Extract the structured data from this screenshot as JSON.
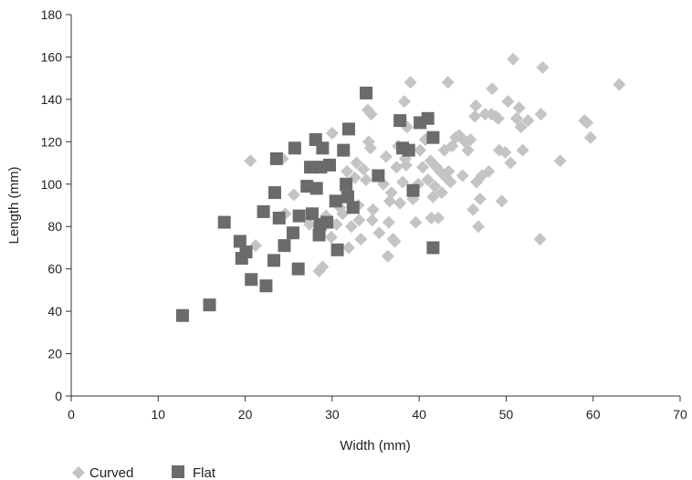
{
  "chart_data": {
    "type": "scatter",
    "title": "",
    "xlabel": "Width (mm)",
    "ylabel": "Length (mm)",
    "xlim": [
      0,
      70
    ],
    "ylim": [
      0,
      180
    ],
    "xticks": [
      0,
      10,
      20,
      30,
      40,
      50,
      60,
      70
    ],
    "yticks": [
      0,
      20,
      40,
      60,
      80,
      100,
      120,
      140,
      160,
      180
    ],
    "grid": false,
    "legend_position": "bottom-left",
    "series": [
      {
        "name": "Curved",
        "marker": "diamond",
        "color": "#c4c4c4",
        "points": [
          [
            20.6,
            111
          ],
          [
            21.2,
            71
          ],
          [
            24.3,
            112
          ],
          [
            24.6,
            86
          ],
          [
            25.6,
            95
          ],
          [
            27.4,
            81
          ],
          [
            28.5,
            59
          ],
          [
            28.9,
            61
          ],
          [
            29.3,
            85
          ],
          [
            29.5,
            83
          ],
          [
            29.9,
            75
          ],
          [
            30.0,
            124
          ],
          [
            30.5,
            81
          ],
          [
            30.9,
            89
          ],
          [
            31.2,
            86
          ],
          [
            31.5,
            97
          ],
          [
            31.7,
            106
          ],
          [
            31.9,
            70
          ],
          [
            32.2,
            80
          ],
          [
            32.6,
            103
          ],
          [
            32.8,
            110
          ],
          [
            33.0,
            90
          ],
          [
            33.1,
            83
          ],
          [
            33.3,
            74
          ],
          [
            33.6,
            107
          ],
          [
            33.9,
            102
          ],
          [
            34.1,
            135
          ],
          [
            34.2,
            120
          ],
          [
            34.4,
            117
          ],
          [
            34.5,
            133
          ],
          [
            34.6,
            83
          ],
          [
            34.7,
            88
          ],
          [
            35.4,
            77
          ],
          [
            35.9,
            100
          ],
          [
            36.2,
            113
          ],
          [
            36.4,
            66
          ],
          [
            36.5,
            82
          ],
          [
            36.6,
            92
          ],
          [
            36.8,
            96
          ],
          [
            37.0,
            74
          ],
          [
            37.2,
            73
          ],
          [
            37.4,
            108
          ],
          [
            37.6,
            118
          ],
          [
            37.8,
            91
          ],
          [
            38.1,
            101
          ],
          [
            38.3,
            139
          ],
          [
            38.4,
            112
          ],
          [
            38.5,
            109
          ],
          [
            38.6,
            127
          ],
          [
            39.0,
            148
          ],
          [
            39.3,
            93
          ],
          [
            39.6,
            82
          ],
          [
            39.9,
            100
          ],
          [
            40.1,
            116
          ],
          [
            40.4,
            108
          ],
          [
            40.7,
            121
          ],
          [
            41.0,
            102
          ],
          [
            41.3,
            111
          ],
          [
            41.4,
            84
          ],
          [
            41.6,
            94
          ],
          [
            41.8,
            99
          ],
          [
            42.0,
            108
          ],
          [
            42.2,
            84
          ],
          [
            42.4,
            106
          ],
          [
            42.6,
            96
          ],
          [
            42.9,
            116
          ],
          [
            43.1,
            103
          ],
          [
            43.3,
            148
          ],
          [
            43.4,
            106
          ],
          [
            43.6,
            101
          ],
          [
            43.8,
            118
          ],
          [
            44.2,
            122
          ],
          [
            44.6,
            123
          ],
          [
            45.0,
            104
          ],
          [
            45.3,
            120
          ],
          [
            45.6,
            116
          ],
          [
            45.9,
            121
          ],
          [
            46.2,
            88
          ],
          [
            46.4,
            132
          ],
          [
            46.5,
            137
          ],
          [
            46.6,
            101
          ],
          [
            46.8,
            80
          ],
          [
            47.0,
            93
          ],
          [
            47.2,
            104
          ],
          [
            47.6,
            133
          ],
          [
            48.0,
            106
          ],
          [
            48.3,
            133
          ],
          [
            48.4,
            145
          ],
          [
            48.8,
            132
          ],
          [
            49.1,
            131
          ],
          [
            49.2,
            116
          ],
          [
            49.5,
            92
          ],
          [
            49.9,
            115
          ],
          [
            50.2,
            139
          ],
          [
            50.5,
            110
          ],
          [
            50.8,
            159
          ],
          [
            51.2,
            131
          ],
          [
            51.5,
            136
          ],
          [
            51.7,
            127
          ],
          [
            51.9,
            116
          ],
          [
            52.5,
            130
          ],
          [
            53.9,
            74
          ],
          [
            54.0,
            133
          ],
          [
            54.2,
            155
          ],
          [
            56.2,
            111
          ],
          [
            59.0,
            130
          ],
          [
            59.3,
            129
          ],
          [
            59.7,
            122
          ],
          [
            63.0,
            147
          ]
        ]
      },
      {
        "name": "Flat",
        "marker": "square",
        "color": "#6b6b6b",
        "points": [
          [
            12.8,
            38
          ],
          [
            15.9,
            43
          ],
          [
            17.6,
            82
          ],
          [
            19.4,
            73
          ],
          [
            19.6,
            65
          ],
          [
            20.1,
            68
          ],
          [
            20.7,
            55
          ],
          [
            22.1,
            87
          ],
          [
            22.4,
            52
          ],
          [
            23.3,
            64
          ],
          [
            23.4,
            96
          ],
          [
            23.6,
            112
          ],
          [
            23.9,
            84
          ],
          [
            24.5,
            71
          ],
          [
            25.5,
            77
          ],
          [
            25.7,
            117
          ],
          [
            26.2,
            85
          ],
          [
            26.1,
            60
          ],
          [
            27.1,
            99
          ],
          [
            27.5,
            108
          ],
          [
            27.7,
            86
          ],
          [
            28.1,
            121
          ],
          [
            28.2,
            98
          ],
          [
            28.5,
            76
          ],
          [
            28.6,
            81
          ],
          [
            28.9,
            117
          ],
          [
            28.7,
            108
          ],
          [
            29.4,
            82
          ],
          [
            29.7,
            109
          ],
          [
            30.4,
            92
          ],
          [
            30.6,
            69
          ],
          [
            31.3,
            116
          ],
          [
            31.6,
            100
          ],
          [
            31.8,
            94
          ],
          [
            31.9,
            126
          ],
          [
            32.4,
            89
          ],
          [
            33.9,
            143
          ],
          [
            35.3,
            104
          ],
          [
            37.8,
            130
          ],
          [
            38.1,
            117
          ],
          [
            38.8,
            116
          ],
          [
            39.3,
            97
          ],
          [
            40.1,
            129
          ],
          [
            41.0,
            131
          ],
          [
            41.6,
            122
          ],
          [
            41.6,
            70
          ]
        ]
      }
    ]
  }
}
